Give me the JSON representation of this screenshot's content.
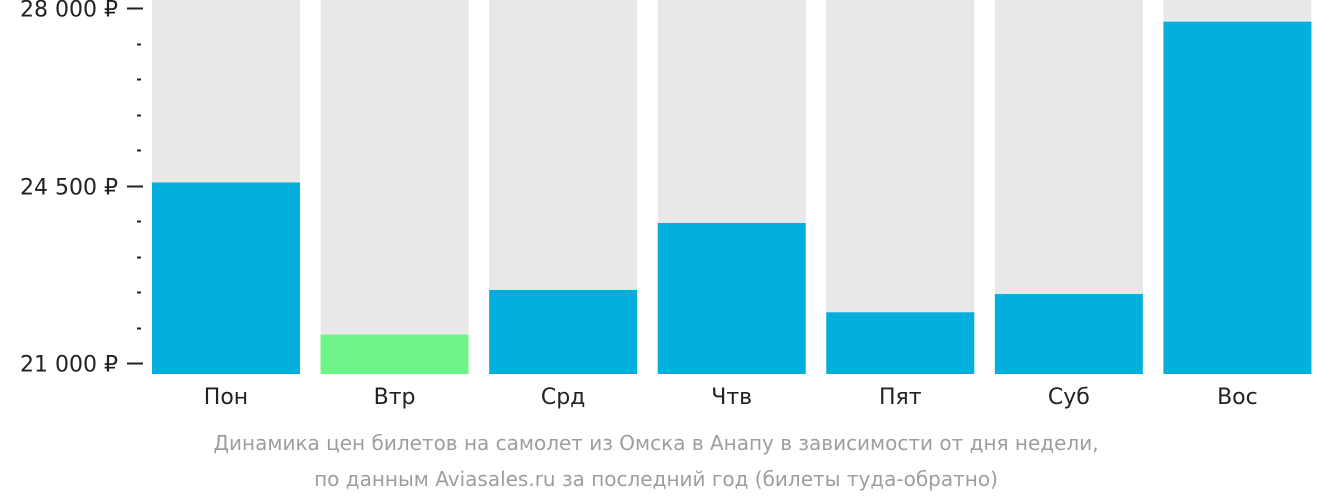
{
  "chart_data": {
    "type": "bar",
    "categories": [
      "Пон",
      "Втр",
      "Срд",
      "Чтв",
      "Пят",
      "Суб",
      "Вос"
    ],
    "values": [
      24560,
      21560,
      22440,
      23760,
      22000,
      22360,
      27730
    ],
    "ylim": [
      21000,
      28000
    ],
    "y_ticks": [
      {
        "value": 21000,
        "label": "21 000 ₽"
      },
      {
        "value": 24500,
        "label": "24 500 ₽"
      },
      {
        "value": 28000,
        "label": "28 000 ₽"
      }
    ],
    "y_minor_step": 700,
    "highlight_index": 1,
    "colors": {
      "bar": "#03afdc",
      "highlight": "#6df488",
      "background_column": "#e8e8e9",
      "axis": "#222222"
    },
    "grid": false,
    "legend": "none"
  },
  "caption": {
    "line1": "Динамика цен билетов на самолет из Омска в Анапу в зависимости от дня недели,",
    "line2": "по данным Aviasales.ru за последний год (билеты туда-обратно)"
  }
}
